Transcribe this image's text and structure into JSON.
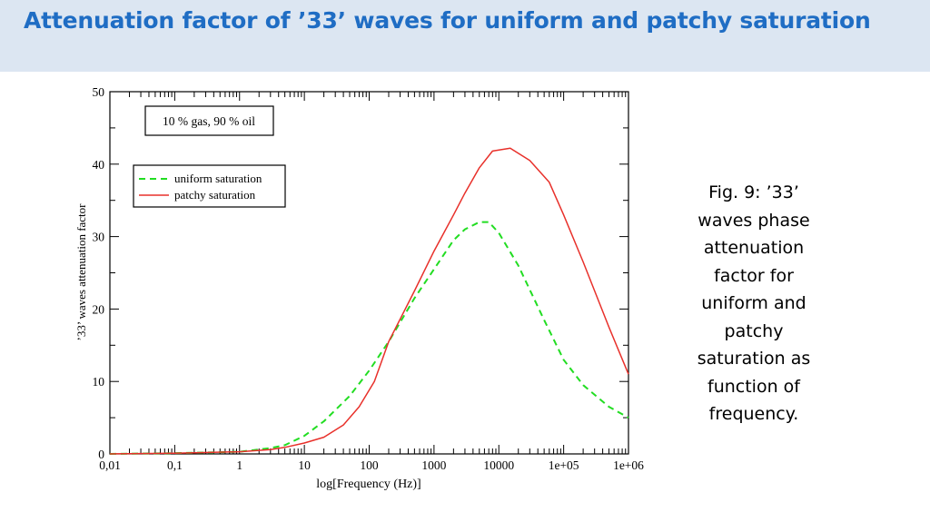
{
  "slide": {
    "title": "Attenuation factor of ’33’ waves for uniform and patchy saturation",
    "caption": "Fig. 9: ’33’ waves phase attenuation factor for uniform and patchy saturation as function of frequency."
  },
  "chart_data": {
    "type": "line",
    "xscale": "log",
    "xlim": [
      0.01,
      1000000
    ],
    "ylim": [
      0,
      50
    ],
    "xlabel": "log[Frequency (Hz)]",
    "ylabel": "’33’ waves attenuation factor",
    "x_tick_labels": [
      "0,01",
      "0,1",
      "1",
      "10",
      "100",
      "1000",
      "10000",
      "1e+05",
      "1e+06"
    ],
    "y_tick_labels": [
      "0",
      "10",
      "20",
      "30",
      "40",
      "50"
    ],
    "annotation": "10 % gas, 90 % oil",
    "legend_position": "upper-left",
    "grid": false,
    "series": [
      {
        "name": "uniform saturation",
        "color": "#22dd22",
        "style": "dashed",
        "x": [
          0.01,
          0.1,
          1,
          3,
          5,
          10,
          20,
          50,
          100,
          200,
          500,
          1000,
          2000,
          3000,
          5000,
          7000,
          10000,
          20000,
          50000,
          100000,
          200000,
          500000,
          1000000
        ],
        "y": [
          0,
          0.1,
          0.3,
          0.8,
          1.2,
          2.5,
          4.5,
          8.0,
          11.5,
          15.5,
          21.5,
          25.5,
          29.5,
          31.0,
          32.0,
          32.0,
          30.5,
          26.0,
          18.5,
          13.0,
          9.5,
          6.5,
          5.0
        ]
      },
      {
        "name": "patchy saturation",
        "color": "#e8302a",
        "style": "solid",
        "x": [
          0.01,
          0.1,
          1,
          3,
          5,
          10,
          20,
          40,
          70,
          120,
          200,
          500,
          1000,
          2000,
          3000,
          5000,
          8000,
          15000,
          30000,
          60000,
          100000,
          200000,
          500000,
          1000000
        ],
        "y": [
          0,
          0.1,
          0.3,
          0.6,
          0.9,
          1.5,
          2.3,
          4.0,
          6.5,
          10.0,
          15.5,
          22.5,
          28.0,
          33.0,
          36.0,
          39.5,
          41.8,
          42.2,
          40.5,
          37.5,
          33.0,
          26.5,
          17.5,
          11.0
        ]
      }
    ]
  }
}
